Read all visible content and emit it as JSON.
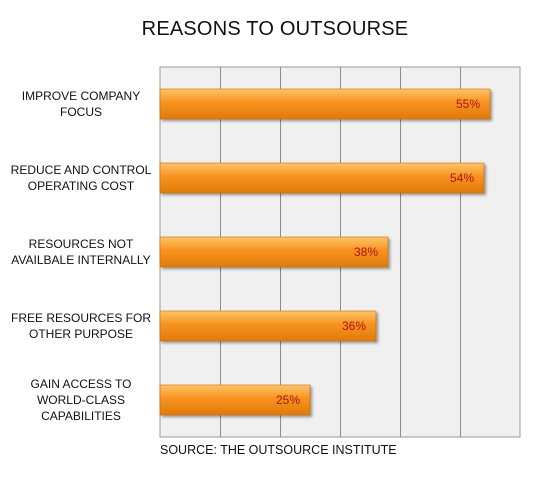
{
  "chart_data": {
    "type": "bar",
    "orientation": "horizontal",
    "title": "REASONS TO OUTSOURSE",
    "categories": [
      [
        "IMPROVE COMPANY",
        "FOCUS"
      ],
      [
        "REDUCE AND CONTROL",
        "OPERATING COST"
      ],
      [
        "RESOURCES NOT",
        "AVAILBALE INTERNALLY"
      ],
      [
        "FREE RESOURCES FOR",
        "OTHER PURPOSE"
      ],
      [
        "GAIN ACCESS TO",
        "WORLD-CLASS",
        "CAPABILITIES"
      ]
    ],
    "values": [
      55,
      54,
      38,
      36,
      25
    ],
    "value_labels": [
      "55%",
      "54%",
      "38%",
      "36%",
      "25%"
    ],
    "xlim": [
      0,
      60
    ],
    "grid": true,
    "bar_color": "#f7931e",
    "value_label_color": "#b01010",
    "plot_background": "#f0f0f0",
    "note": "SOURCE: THE OUTSOURCE INSTITUTE"
  }
}
